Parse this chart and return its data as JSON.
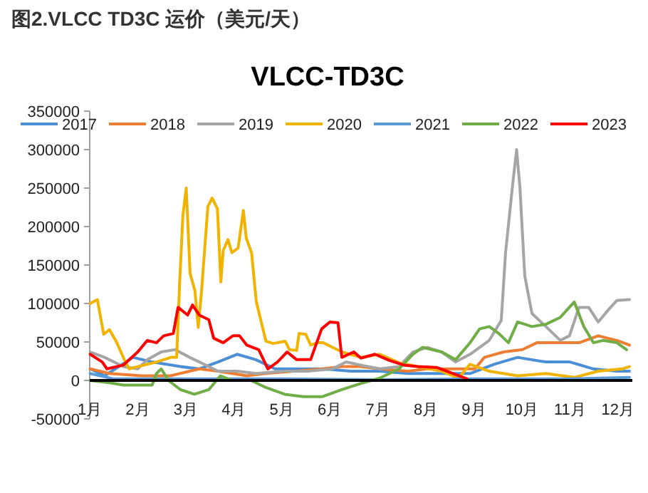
{
  "chart_data": {
    "type": "line",
    "title": "图2.VLCC TD3C 运价（美元/天）",
    "subtitle": "VLCC-TD3C",
    "xlim": [
      1,
      12.3
    ],
    "ylim": [
      -50000,
      350000
    ],
    "xticks": [
      {
        "value": 1,
        "label": "1月"
      },
      {
        "value": 2,
        "label": "2月"
      },
      {
        "value": 3,
        "label": "3月"
      },
      {
        "value": 4,
        "label": "4月"
      },
      {
        "value": 5,
        "label": "5月"
      },
      {
        "value": 6,
        "label": "6月"
      },
      {
        "value": 7,
        "label": "7月"
      },
      {
        "value": 8,
        "label": "8月"
      },
      {
        "value": 9,
        "label": "9月"
      },
      {
        "value": 10,
        "label": "10月"
      },
      {
        "value": 11,
        "label": "11月"
      },
      {
        "value": 12,
        "label": "12月"
      }
    ],
    "yticks": [
      -50000,
      0,
      50000,
      100000,
      150000,
      200000,
      250000,
      300000,
      350000
    ],
    "legend": "top",
    "grid": false,
    "series": [
      {
        "name": "2017",
        "color": "#4a8fd6",
        "x": [
          1.01,
          1.31,
          1.9,
          2.3,
          2.89,
          3.28,
          3.67,
          4.07,
          4.46,
          4.86,
          5.26,
          5.85,
          6.44,
          7.04,
          7.63,
          8.22,
          8.92,
          9.42,
          9.91,
          10.5,
          11.0,
          11.49,
          11.98,
          12.24
        ],
        "values": [
          15000,
          6000,
          30000,
          24000,
          18000,
          15000,
          24000,
          34000,
          27000,
          15000,
          15000,
          15000,
          12000,
          12000,
          9000,
          9000,
          9000,
          21000,
          30000,
          24000,
          24000,
          15000,
          12000,
          12000
        ]
      },
      {
        "name": "2018",
        "color": "#ed7d31",
        "x": [
          1.01,
          1.41,
          2.09,
          2.68,
          3.28,
          3.67,
          4.27,
          4.66,
          5.26,
          5.85,
          6.25,
          6.64,
          7.04,
          7.63,
          8.03,
          8.62,
          9.02,
          9.22,
          9.62,
          10.01,
          10.31,
          10.8,
          11.19,
          11.59,
          11.98,
          12.24
        ],
        "values": [
          15000,
          9000,
          6000,
          6000,
          15000,
          12000,
          6000,
          9000,
          12000,
          15000,
          18000,
          18000,
          15000,
          12000,
          15000,
          15000,
          15000,
          30000,
          37000,
          40000,
          49000,
          49000,
          49000,
          58000,
          52000,
          46000
        ]
      },
      {
        "name": "2019",
        "color": "#a5a5a5",
        "x": [
          1.01,
          1.31,
          1.7,
          2.0,
          2.2,
          2.49,
          2.78,
          3.08,
          3.38,
          3.67,
          4.07,
          4.46,
          5.06,
          5.55,
          6.05,
          6.34,
          6.64,
          7.04,
          7.44,
          7.73,
          8.03,
          8.33,
          8.62,
          8.92,
          9.32,
          9.57,
          9.66,
          9.81,
          9.89,
          9.96,
          10.06,
          10.21,
          10.5,
          10.8,
          10.99,
          11.19,
          11.39,
          11.59,
          11.79,
          11.98,
          12.24
        ],
        "values": [
          37000,
          30000,
          18000,
          15000,
          27000,
          37000,
          40000,
          30000,
          21000,
          12000,
          12000,
          9000,
          12000,
          12000,
          15000,
          24000,
          20000,
          15000,
          18000,
          37000,
          43000,
          37000,
          24000,
          34000,
          52000,
          78000,
          166000,
          256000,
          300000,
          250000,
          136000,
          87000,
          70000,
          52000,
          58000,
          95000,
          95000,
          76000,
          91000,
          104000,
          105000
        ]
      },
      {
        "name": "2020",
        "color": "#f0b400",
        "x": [
          1.01,
          1.16,
          1.29,
          1.41,
          1.55,
          1.72,
          1.82,
          2.0,
          2.39,
          2.69,
          2.81,
          2.87,
          2.94,
          3.01,
          3.09,
          3.19,
          3.26,
          3.33,
          3.46,
          3.55,
          3.66,
          3.73,
          3.78,
          3.88,
          3.96,
          4.09,
          4.2,
          4.26,
          4.37,
          4.47,
          4.67,
          4.82,
          5.07,
          5.16,
          5.31,
          5.36,
          5.5,
          5.6,
          5.74,
          5.86,
          6.25,
          6.65,
          7.04,
          7.44,
          7.83,
          8.33,
          8.68,
          8.92,
          9.32,
          9.91,
          10.5,
          11.1,
          11.59,
          12.09,
          12.24
        ],
        "values": [
          100000,
          105000,
          60000,
          66000,
          51000,
          27000,
          15000,
          18000,
          24000,
          30000,
          30000,
          123000,
          214000,
          250000,
          139000,
          117000,
          69000,
          117000,
          226000,
          237000,
          223000,
          128000,
          169000,
          183000,
          166000,
          172000,
          221000,
          185000,
          166000,
          102000,
          51000,
          48000,
          51000,
          40000,
          39000,
          61000,
          60000,
          46000,
          49000,
          49000,
          37000,
          30000,
          34000,
          23000,
          18000,
          12000,
          3000,
          21000,
          12000,
          6000,
          9000,
          4000,
          12000,
          15000,
          18000
        ]
      },
      {
        "name": "2021",
        "color": "#5b9bd5",
        "x": [
          1.01,
          1.5,
          3.0,
          5.0,
          7.0,
          9.0,
          11.0,
          12.24
        ],
        "values": [
          9000,
          2000,
          2000,
          2000,
          1000,
          2000,
          2000,
          4000
        ]
      },
      {
        "name": "2022",
        "color": "#70ad47",
        "x": [
          1.01,
          1.41,
          1.7,
          2.3,
          2.39,
          2.49,
          2.64,
          2.89,
          3.18,
          3.48,
          3.72,
          3.97,
          4.36,
          4.66,
          5.06,
          5.45,
          5.85,
          6.25,
          6.64,
          7.04,
          7.44,
          7.73,
          7.93,
          8.33,
          8.62,
          8.92,
          9.12,
          9.32,
          9.52,
          9.72,
          9.91,
          10.21,
          10.5,
          10.8,
          11.09,
          11.29,
          11.49,
          11.69,
          11.98,
          12.18
        ],
        "values": [
          0,
          -3000,
          -6000,
          -6000,
          9000,
          15000,
          0,
          -12000,
          -18000,
          -12000,
          6000,
          0,
          0,
          -9000,
          -18000,
          -21000,
          -21000,
          -12000,
          -4000,
          3000,
          15000,
          34000,
          43000,
          37000,
          27000,
          49000,
          67000,
          70000,
          61000,
          49000,
          76000,
          70000,
          73000,
          82000,
          102000,
          70000,
          49000,
          52000,
          49000,
          40000
        ]
      },
      {
        "name": "2023",
        "color": "#ff0000",
        "x": [
          1.01,
          1.26,
          1.36,
          1.7,
          2.0,
          2.2,
          2.39,
          2.54,
          2.74,
          2.84,
          3.04,
          3.14,
          3.28,
          3.48,
          3.58,
          3.78,
          3.98,
          4.12,
          4.27,
          4.52,
          4.71,
          4.91,
          5.11,
          5.31,
          5.6,
          5.83,
          6.0,
          6.17,
          6.25,
          6.5,
          6.65,
          6.94,
          7.24,
          7.54,
          7.83,
          8.22,
          8.52,
          8.86
        ],
        "values": [
          34000,
          24000,
          15000,
          20000,
          37000,
          52000,
          49000,
          58000,
          61000,
          95000,
          85000,
          98000,
          85000,
          79000,
          55000,
          49000,
          58000,
          58000,
          46000,
          40000,
          15000,
          24000,
          37000,
          27000,
          27000,
          67000,
          76000,
          75000,
          30000,
          37000,
          29000,
          34000,
          26000,
          20000,
          18000,
          17000,
          10000,
          2000
        ]
      }
    ]
  }
}
